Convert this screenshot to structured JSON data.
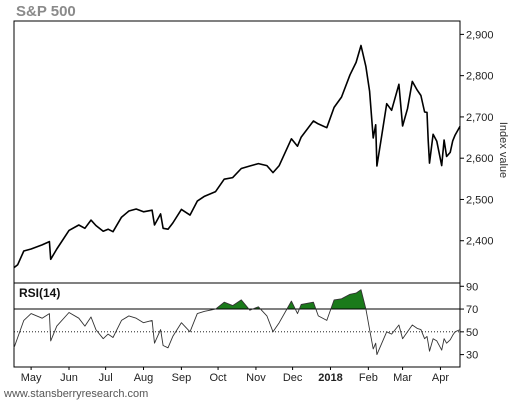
{
  "chart_data": [
    {
      "type": "line",
      "title": "S&P 500",
      "ylabel": "Index value",
      "xlabel": "",
      "ylim": [
        2300,
        2930
      ],
      "yticks": [
        2400,
        2500,
        2600,
        2700,
        2800,
        2900
      ],
      "ytick_labels": [
        "2,400",
        "2,500",
        "2,600",
        "2,700",
        "2,800",
        "2,900"
      ],
      "x_range": [
        "2017-04-17",
        "2018-04-17"
      ],
      "months": [
        {
          "label": "May",
          "date": "2017-05-01"
        },
        {
          "label": "Jun",
          "date": "2017-06-01"
        },
        {
          "label": "Jul",
          "date": "2017-07-01"
        },
        {
          "label": "Aug",
          "date": "2017-08-01"
        },
        {
          "label": "Sep",
          "date": "2017-09-01"
        },
        {
          "label": "Oct",
          "date": "2017-10-01"
        },
        {
          "label": "Nov",
          "date": "2017-11-01"
        },
        {
          "label": "Dec",
          "date": "2017-12-01"
        },
        {
          "label": "2018",
          "date": "2018-01-01"
        },
        {
          "label": "Feb",
          "date": "2018-02-01"
        },
        {
          "label": "Mar",
          "date": "2018-03-01"
        },
        {
          "label": "Apr",
          "date": "2018-04-01"
        }
      ],
      "grid": false,
      "line_color": "#000000",
      "points": [
        [
          "2017-04-17",
          2335
        ],
        [
          "2017-04-20",
          2342
        ],
        [
          "2017-04-25",
          2375
        ],
        [
          "2017-05-01",
          2380
        ],
        [
          "2017-05-10",
          2390
        ],
        [
          "2017-05-16",
          2398
        ],
        [
          "2017-05-17",
          2355
        ],
        [
          "2017-05-22",
          2380
        ],
        [
          "2017-06-01",
          2425
        ],
        [
          "2017-06-09",
          2438
        ],
        [
          "2017-06-14",
          2430
        ],
        [
          "2017-06-19",
          2450
        ],
        [
          "2017-06-23",
          2437
        ],
        [
          "2017-06-29",
          2423
        ],
        [
          "2017-07-03",
          2428
        ],
        [
          "2017-07-07",
          2422
        ],
        [
          "2017-07-14",
          2457
        ],
        [
          "2017-07-20",
          2472
        ],
        [
          "2017-07-26",
          2477
        ],
        [
          "2017-08-01",
          2470
        ],
        [
          "2017-08-08",
          2474
        ],
        [
          "2017-08-10",
          2438
        ],
        [
          "2017-08-15",
          2465
        ],
        [
          "2017-08-17",
          2430
        ],
        [
          "2017-08-21",
          2428
        ],
        [
          "2017-08-25",
          2443
        ],
        [
          "2017-09-01",
          2476
        ],
        [
          "2017-09-08",
          2462
        ],
        [
          "2017-09-14",
          2496
        ],
        [
          "2017-09-20",
          2508
        ],
        [
          "2017-09-29",
          2519
        ],
        [
          "2017-10-06",
          2549
        ],
        [
          "2017-10-13",
          2553
        ],
        [
          "2017-10-20",
          2575
        ],
        [
          "2017-10-27",
          2581
        ],
        [
          "2017-11-03",
          2587
        ],
        [
          "2017-11-10",
          2582
        ],
        [
          "2017-11-15",
          2565
        ],
        [
          "2017-11-20",
          2582
        ],
        [
          "2017-11-30",
          2647
        ],
        [
          "2017-12-05",
          2629
        ],
        [
          "2017-12-08",
          2651
        ],
        [
          "2017-12-18",
          2690
        ],
        [
          "2017-12-22",
          2683
        ],
        [
          "2017-12-29",
          2674
        ],
        [
          "2018-01-04",
          2723
        ],
        [
          "2018-01-10",
          2748
        ],
        [
          "2018-01-17",
          2802
        ],
        [
          "2018-01-22",
          2832
        ],
        [
          "2018-01-26",
          2873
        ],
        [
          "2018-01-30",
          2822
        ],
        [
          "2018-02-02",
          2762
        ],
        [
          "2018-02-05",
          2649
        ],
        [
          "2018-02-07",
          2681
        ],
        [
          "2018-02-08",
          2581
        ],
        [
          "2018-02-12",
          2656
        ],
        [
          "2018-02-16",
          2732
        ],
        [
          "2018-02-20",
          2716
        ],
        [
          "2018-02-26",
          2779
        ],
        [
          "2018-03-01",
          2678
        ],
        [
          "2018-03-05",
          2720
        ],
        [
          "2018-03-09",
          2786
        ],
        [
          "2018-03-13",
          2765
        ],
        [
          "2018-03-16",
          2752
        ],
        [
          "2018-03-19",
          2712
        ],
        [
          "2018-03-21",
          2711
        ],
        [
          "2018-03-22",
          2643
        ],
        [
          "2018-03-23",
          2588
        ],
        [
          "2018-03-26",
          2658
        ],
        [
          "2018-03-29",
          2641
        ],
        [
          "2018-04-02",
          2582
        ],
        [
          "2018-04-04",
          2644
        ],
        [
          "2018-04-06",
          2604
        ],
        [
          "2018-04-09",
          2614
        ],
        [
          "2018-04-11",
          2642
        ],
        [
          "2018-04-13",
          2656
        ],
        [
          "2018-04-17",
          2677
        ]
      ]
    },
    {
      "type": "line",
      "title": "RSI(14)",
      "ylim": [
        20,
        92
      ],
      "yticks": [
        30,
        50,
        70,
        90
      ],
      "ytick_labels": [
        "30",
        "50",
        "70",
        "90"
      ],
      "overbought": 70,
      "midline": 50,
      "line_color": "#333333",
      "fill_color": "#1a7a1a",
      "points": [
        [
          "2017-04-17",
          36
        ],
        [
          "2017-04-20",
          45
        ],
        [
          "2017-04-25",
          60
        ],
        [
          "2017-05-01",
          66
        ],
        [
          "2017-05-10",
          62
        ],
        [
          "2017-05-16",
          66
        ],
        [
          "2017-05-17",
          42
        ],
        [
          "2017-05-22",
          55
        ],
        [
          "2017-06-01",
          67
        ],
        [
          "2017-06-09",
          62
        ],
        [
          "2017-06-14",
          55
        ],
        [
          "2017-06-19",
          63
        ],
        [
          "2017-06-23",
          52
        ],
        [
          "2017-06-29",
          44
        ],
        [
          "2017-07-03",
          48
        ],
        [
          "2017-07-07",
          45
        ],
        [
          "2017-07-14",
          60
        ],
        [
          "2017-07-20",
          64
        ],
        [
          "2017-07-26",
          62
        ],
        [
          "2017-08-01",
          58
        ],
        [
          "2017-08-08",
          60
        ],
        [
          "2017-08-10",
          40
        ],
        [
          "2017-08-15",
          52
        ],
        [
          "2017-08-17",
          38
        ],
        [
          "2017-08-21",
          36
        ],
        [
          "2017-08-25",
          46
        ],
        [
          "2017-09-01",
          58
        ],
        [
          "2017-09-08",
          50
        ],
        [
          "2017-09-14",
          66
        ],
        [
          "2017-09-20",
          68
        ],
        [
          "2017-09-29",
          70
        ],
        [
          "2017-10-06",
          76
        ],
        [
          "2017-10-13",
          73
        ],
        [
          "2017-10-20",
          78
        ],
        [
          "2017-10-27",
          69
        ],
        [
          "2017-11-03",
          72
        ],
        [
          "2017-11-10",
          64
        ],
        [
          "2017-11-15",
          50
        ],
        [
          "2017-11-20",
          58
        ],
        [
          "2017-11-30",
          77
        ],
        [
          "2017-12-05",
          66
        ],
        [
          "2017-12-08",
          74
        ],
        [
          "2017-12-18",
          76
        ],
        [
          "2017-12-22",
          64
        ],
        [
          "2017-12-29",
          60
        ],
        [
          "2018-01-04",
          78
        ],
        [
          "2018-01-10",
          79
        ],
        [
          "2018-01-17",
          83
        ],
        [
          "2018-01-22",
          84
        ],
        [
          "2018-01-26",
          87
        ],
        [
          "2018-01-30",
          70
        ],
        [
          "2018-02-02",
          52
        ],
        [
          "2018-02-05",
          35
        ],
        [
          "2018-02-07",
          40
        ],
        [
          "2018-02-08",
          30
        ],
        [
          "2018-02-12",
          40
        ],
        [
          "2018-02-16",
          50
        ],
        [
          "2018-02-20",
          48
        ],
        [
          "2018-02-26",
          56
        ],
        [
          "2018-03-01",
          44
        ],
        [
          "2018-03-05",
          50
        ],
        [
          "2018-03-09",
          56
        ],
        [
          "2018-03-13",
          53
        ],
        [
          "2018-03-16",
          52
        ],
        [
          "2018-03-19",
          44
        ],
        [
          "2018-03-21",
          46
        ],
        [
          "2018-03-22",
          40
        ],
        [
          "2018-03-23",
          33
        ],
        [
          "2018-03-26",
          44
        ],
        [
          "2018-03-29",
          42
        ],
        [
          "2018-04-02",
          34
        ],
        [
          "2018-04-04",
          44
        ],
        [
          "2018-04-06",
          40
        ],
        [
          "2018-04-09",
          43
        ],
        [
          "2018-04-11",
          47
        ],
        [
          "2018-04-13",
          50
        ],
        [
          "2018-04-17",
          52
        ]
      ]
    }
  ],
  "footer": {
    "source": "www.stansberryresearch.com"
  }
}
